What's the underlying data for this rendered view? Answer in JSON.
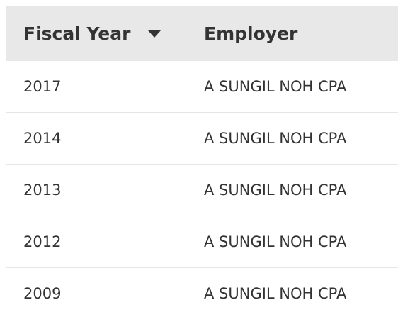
{
  "table": {
    "columns": [
      {
        "label": "Fiscal Year",
        "sort": "descending"
      },
      {
        "label": "Employer"
      }
    ],
    "rows": [
      {
        "fiscal_year": "2017",
        "employer": "A SUNGIL NOH CPA"
      },
      {
        "fiscal_year": "2014",
        "employer": "A SUNGIL NOH CPA"
      },
      {
        "fiscal_year": "2013",
        "employer": "A SUNGIL NOH CPA"
      },
      {
        "fiscal_year": "2012",
        "employer": "A SUNGIL NOH CPA"
      },
      {
        "fiscal_year": "2009",
        "employer": "A SUNGIL NOH CPA"
      }
    ]
  },
  "colors": {
    "header_bg": "#e8e8e8",
    "text": "#333333",
    "row_divider": "#e6e6e6"
  },
  "icons": {
    "sort": "sort-descending-icon"
  }
}
